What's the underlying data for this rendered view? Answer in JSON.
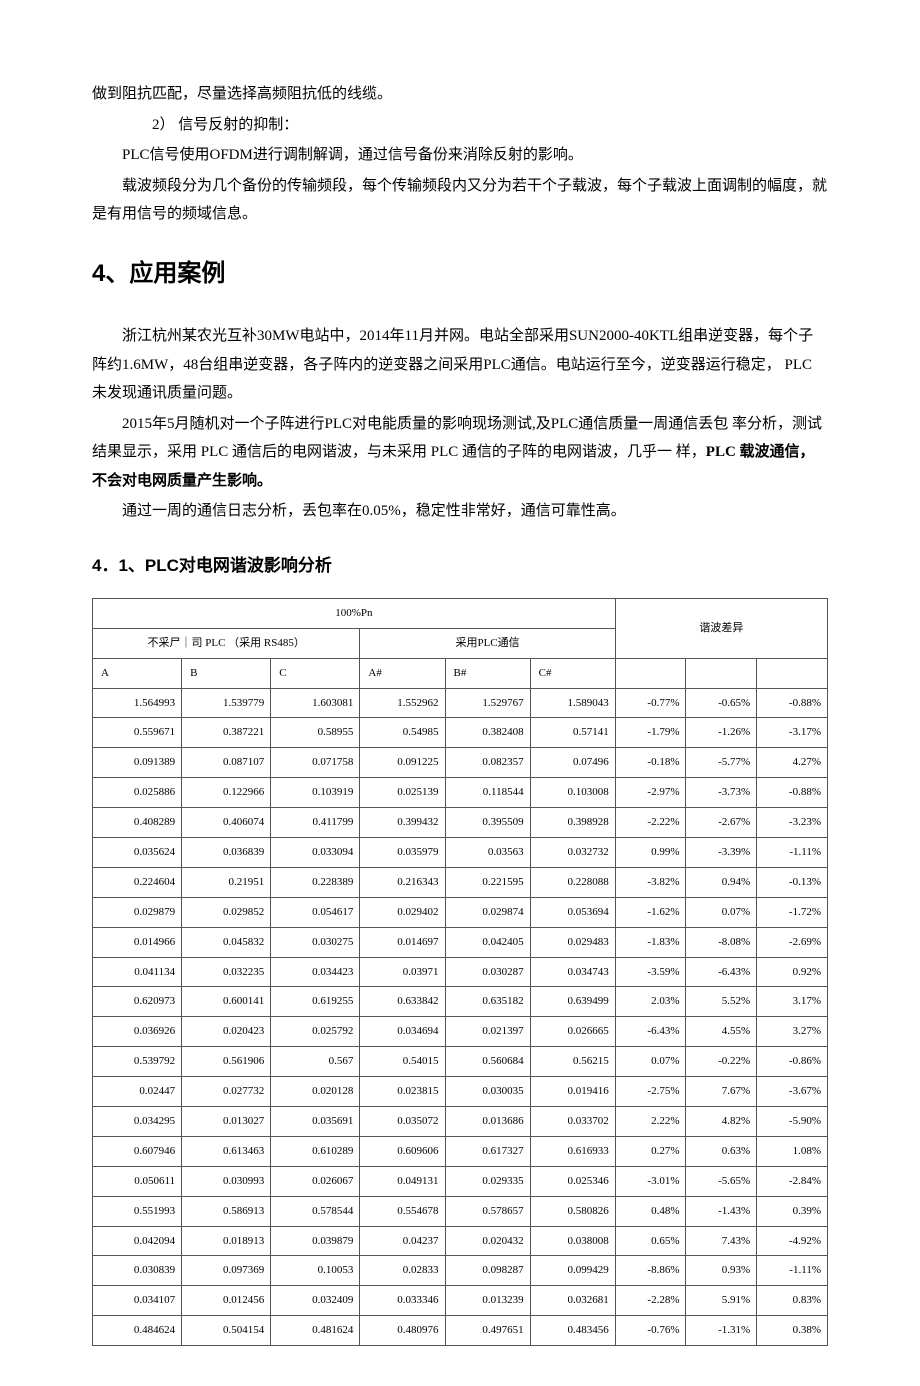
{
  "intro": {
    "p1": "做到阻抗匹配，尽量选择高频阻抗低的线缆。",
    "p2": "2）  信号反射的抑制：",
    "p3": "PLC信号使用OFDM进行调制解调，通过信号备份来消除反射的影响。",
    "p4": "载波频段分为几个备份的传输频段，每个传输频段内又分为若干个子载波，每个子载波上面调制的幅度，就是有用信号的频域信息。"
  },
  "section4": {
    "title": "4、应用案例",
    "p1": "浙江杭州某农光互补30MW电站中，2014年11月并网。电站全部采用SUN2000-40KTL组串逆变器，每个子阵约1.6MW，48台组串逆变器，各子阵内的逆变器之间采用PLC通信。电站运行至今，逆变器运行稳定，  PLC 未发现通讯质量问题。",
    "p2_part1": "2015年5月随机对一个子阵进行PLC对电能质量的影响现场测试,及PLC通信质量一周通信丢包 率分析，测试结果显示，采用 PLC 通信后的电网谐波，与未采用 PLC 通信的子阵的电网谐波，几乎一 样，",
    "p2_bold": "PLC 载波通信，不会对电网质量产生影响。",
    "p3": "通过一周的通信日志分析，丢包率在0.05%，稳定性非常好，通信可靠性高。"
  },
  "section41": {
    "title": "4．1、PLC对电网谐波影响分析"
  },
  "table": {
    "header_top": "100%Pn",
    "header_left": "不采尸｜司 PLC （采用 RS485）",
    "header_mid": "采用PLC通信",
    "header_right": "谐波差异",
    "cols_left": [
      "A",
      "B",
      "C"
    ],
    "cols_mid": [
      "A#",
      "B#",
      "C#"
    ],
    "rows": [
      [
        "1.564993",
        "1.539779",
        "1.603081",
        "1.552962",
        "1.529767",
        "1.589043",
        "-0.77%",
        "-0.65%",
        "-0.88%"
      ],
      [
        "0.559671",
        "0.387221",
        "0.58955",
        "0.54985",
        "0.382408",
        "0.57141",
        "-1.79%",
        "-1.26%",
        "-3.17%"
      ],
      [
        "0.091389",
        "0.087107",
        "0.071758",
        "0.091225",
        "0.082357",
        "0.07496",
        "-0.18%",
        "-5.77%",
        "4.27%"
      ],
      [
        "0.025886",
        "0.122966",
        "0.103919",
        "0.025139",
        "0.118544",
        "0.103008",
        "-2.97%",
        "-3.73%",
        "-0.88%"
      ],
      [
        "0.408289",
        "0.406074",
        "0.411799",
        "0.399432",
        "0.395509",
        "0.398928",
        "-2.22%",
        "-2.67%",
        "-3.23%"
      ],
      [
        "0.035624",
        "0.036839",
        "0.033094",
        "0.035979",
        "0.03563",
        "0.032732",
        "0.99%",
        "-3.39%",
        "-1.11%"
      ],
      [
        "0.224604",
        "0.21951",
        "0.228389",
        "0.216343",
        "0.221595",
        "0.228088",
        "-3.82%",
        "0.94%",
        "-0.13%"
      ],
      [
        "0.029879",
        "0.029852",
        "0.054617",
        "0.029402",
        "0.029874",
        "0.053694",
        "-1.62%",
        "0.07%",
        "-1.72%"
      ],
      [
        "0.014966",
        "0.045832",
        "0.030275",
        "0.014697",
        "0.042405",
        "0.029483",
        "-1.83%",
        "-8.08%",
        "-2.69%"
      ],
      [
        "0.041134",
        "0.032235",
        "0.034423",
        "0.03971",
        "0.030287",
        "0.034743",
        "-3.59%",
        "-6.43%",
        "0.92%"
      ],
      [
        "0.620973",
        "0.600141",
        "0.619255",
        "0.633842",
        "0.635182",
        "0.639499",
        "2.03%",
        "5.52%",
        "3.17%"
      ],
      [
        "0.036926",
        "0.020423",
        "0.025792",
        "0.034694",
        "0.021397",
        "0.026665",
        "-6.43%",
        "4.55%",
        "3.27%"
      ],
      [
        "0.539792",
        "0.561906",
        "0.567",
        "0.54015",
        "0.560684",
        "0.56215",
        "0.07%",
        "-0.22%",
        "-0.86%"
      ],
      [
        "0.02447",
        "0.027732",
        "0.020128",
        "0.023815",
        "0.030035",
        "0.019416",
        "-2.75%",
        "7.67%",
        "-3.67%"
      ],
      [
        "0.034295",
        "0.013027",
        "0.035691",
        "0.035072",
        "0.013686",
        "0.033702",
        "2.22%",
        "4.82%",
        "-5.90%"
      ],
      [
        "0.607946",
        "0.613463",
        "0.610289",
        "0.609606",
        "0.617327",
        "0.616933",
        "0.27%",
        "0.63%",
        "1.08%"
      ],
      [
        "0.050611",
        "0.030993",
        "0.026067",
        "0.049131",
        "0.029335",
        "0.025346",
        "-3.01%",
        "-5.65%",
        "-2.84%"
      ],
      [
        "0.551993",
        "0.586913",
        "0.578544",
        "0.554678",
        "0.578657",
        "0.580826",
        "0.48%",
        "-1.43%",
        "0.39%"
      ],
      [
        "0.042094",
        "0.018913",
        "0.039879",
        "0.04237",
        "0.020432",
        "0.038008",
        "0.65%",
        "7.43%",
        "-4.92%"
      ],
      [
        "0.030839",
        "0.097369",
        "0.10053",
        "0.02833",
        "0.098287",
        "0.099429",
        "-8.86%",
        "0.93%",
        "-1.11%"
      ],
      [
        "0.034107",
        "0.012456",
        "0.032409",
        "0.033346",
        "0.013239",
        "0.032681",
        "-2.28%",
        "5.91%",
        "0.83%"
      ],
      [
        "0.484624",
        "0.504154",
        "0.481624",
        "0.480976",
        "0.497651",
        "0.483456",
        "-0.76%",
        "-1.31%",
        "0.38%"
      ]
    ],
    "colors": {
      "border": "#555555",
      "text": "#000000",
      "bg": "#ffffff"
    },
    "font_size_pt": 8,
    "col_widths_pct": [
      11.1,
      11.1,
      11.1,
      11.1,
      11.1,
      11.1,
      11.1,
      11.1,
      11.1
    ]
  }
}
